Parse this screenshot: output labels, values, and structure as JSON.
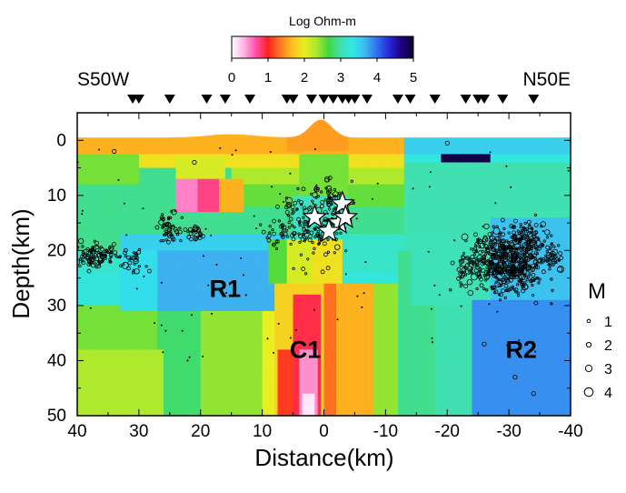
{
  "chart_data": {
    "type": "heatmap",
    "title": "",
    "colorbar": {
      "label": "Log Ohm-m",
      "ticks": [
        0,
        1,
        2,
        3,
        4,
        5
      ],
      "range": [
        0,
        5
      ],
      "colors": [
        "#ffffff",
        "#ffb3e6",
        "#ff4fa8",
        "#ff2020",
        "#ff7a20",
        "#ffc020",
        "#e8ee20",
        "#a8e830",
        "#40d840",
        "#40e0b0",
        "#30e8e8",
        "#40b8f0",
        "#3070f0",
        "#2828d8",
        "#200080",
        "#100030"
      ]
    },
    "xlabel": "Distance(km)",
    "ylabel": "Depth(km)",
    "x_ticks": [
      "40",
      "30",
      "20",
      "10",
      "0",
      "-10",
      "-20",
      "-30",
      "-40"
    ],
    "y_ticks": [
      "0",
      "10",
      "20",
      "30",
      "40",
      "50"
    ],
    "xlim": [
      40,
      -40
    ],
    "ylim": [
      50,
      -5
    ],
    "direction_labels": {
      "left": "S50W",
      "right": "N50E"
    },
    "stations_x": [
      31,
      30,
      25,
      19,
      16,
      12,
      6,
      5,
      2,
      0,
      -1.5,
      -3,
      -4,
      -5,
      -7,
      -12,
      -14,
      -18,
      -23,
      -25,
      -26,
      -29,
      -34
    ],
    "region_labels": [
      {
        "text": "R1",
        "x": 16,
        "y": 27
      },
      {
        "text": "C1",
        "x": 3,
        "y": 38
      },
      {
        "text": "R2",
        "x": -32,
        "y": 38
      }
    ],
    "magnitude_legend": {
      "title": "M",
      "levels": [
        "1",
        "2",
        "3",
        "4"
      ]
    },
    "colors": {
      "background_resistivity": "#30e8e8",
      "conductor": "#ff2020",
      "resistor": "#3878f0"
    }
  }
}
